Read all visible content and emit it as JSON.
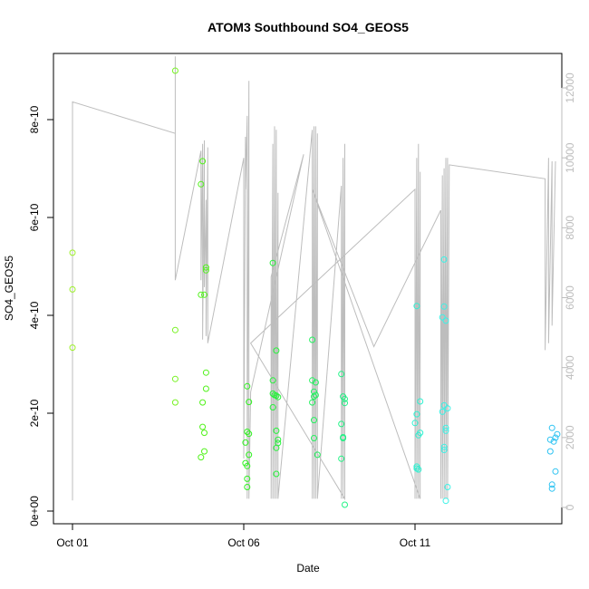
{
  "chart_data": {
    "type": "scatter",
    "title": "ATOM3 Southbound SO4_GEOS5",
    "xlabel": "Date",
    "ylabel": "SO4_GEOS5",
    "xlim": [
      0.0,
      14.5
    ],
    "ylim": [
      0.0,
      9.3e-10
    ],
    "y2lim": [
      0,
      12700
    ],
    "x_ticks": [
      {
        "value": 0,
        "label": "Oct 01"
      },
      {
        "value": 5,
        "label": "Oct 06"
      },
      {
        "value": 10,
        "label": "Oct 11"
      }
    ],
    "y_ticks": [
      {
        "value": 0,
        "label": "0e+00"
      },
      {
        "value": 2e-10,
        "label": "2e-10"
      },
      {
        "value": 4e-10,
        "label": "4e-10"
      },
      {
        "value": 6e-10,
        "label": "6e-10"
      },
      {
        "value": 8e-10,
        "label": "8e-10"
      }
    ],
    "y2_ticks": [
      {
        "value": 0,
        "label": "0"
      },
      {
        "value": 2000,
        "label": "2000"
      },
      {
        "value": 4000,
        "label": "4000"
      },
      {
        "value": 6000,
        "label": "6000"
      },
      {
        "value": 8000,
        "label": "8000"
      },
      {
        "value": 10000,
        "label": "10000"
      },
      {
        "value": 12000,
        "label": "12000"
      }
    ],
    "marker": "open-circle",
    "line_color": "#bdbdbd",
    "points": [
      {
        "x": 0.0,
        "y": 5.28e-10,
        "color": "#9ef22a"
      },
      {
        "x": 0.0,
        "y": 4.53e-10,
        "color": "#9ef22a"
      },
      {
        "x": 0.0,
        "y": 3.34e-10,
        "color": "#9ef22a"
      },
      {
        "x": 3.0,
        "y": 9e-10,
        "color": "#78f224"
      },
      {
        "x": 3.0,
        "y": 3.7e-10,
        "color": "#78f224"
      },
      {
        "x": 3.0,
        "y": 2.7e-10,
        "color": "#78f224"
      },
      {
        "x": 3.0,
        "y": 2.22e-10,
        "color": "#78f224"
      },
      {
        "x": 3.8,
        "y": 7.15e-10,
        "color": "#52f21c"
      },
      {
        "x": 3.75,
        "y": 6.68e-10,
        "color": "#52f21c"
      },
      {
        "x": 3.9,
        "y": 4.98e-10,
        "color": "#52f21c"
      },
      {
        "x": 3.9,
        "y": 4.92e-10,
        "color": "#52f21c"
      },
      {
        "x": 3.75,
        "y": 4.42e-10,
        "color": "#52f21c"
      },
      {
        "x": 3.85,
        "y": 4.42e-10,
        "color": "#52f21c"
      },
      {
        "x": 3.9,
        "y": 2.83e-10,
        "color": "#52f21c"
      },
      {
        "x": 3.9,
        "y": 2.5e-10,
        "color": "#52f21c"
      },
      {
        "x": 3.8,
        "y": 2.22e-10,
        "color": "#52f21c"
      },
      {
        "x": 3.8,
        "y": 1.72e-10,
        "color": "#52f21c"
      },
      {
        "x": 3.85,
        "y": 1.6e-10,
        "color": "#52f21c"
      },
      {
        "x": 3.85,
        "y": 1.22e-10,
        "color": "#52f21c"
      },
      {
        "x": 3.75,
        "y": 1.1e-10,
        "color": "#52f21c"
      },
      {
        "x": 5.1,
        "y": 2.55e-10,
        "color": "#2ef21f"
      },
      {
        "x": 5.15,
        "y": 2.23e-10,
        "color": "#2ef21f"
      },
      {
        "x": 5.1,
        "y": 1.62e-10,
        "color": "#2ef21f"
      },
      {
        "x": 5.15,
        "y": 1.58e-10,
        "color": "#2ef21f"
      },
      {
        "x": 5.05,
        "y": 1.4e-10,
        "color": "#2ef21f"
      },
      {
        "x": 5.15,
        "y": 1.15e-10,
        "color": "#2ef21f"
      },
      {
        "x": 5.05,
        "y": 9.8e-11,
        "color": "#2ef21f"
      },
      {
        "x": 5.1,
        "y": 9.2e-11,
        "color": "#2ef21f"
      },
      {
        "x": 5.1,
        "y": 6.6e-11,
        "color": "#2ef21f"
      },
      {
        "x": 5.1,
        "y": 4.9e-11,
        "color": "#2ef21f"
      },
      {
        "x": 5.85,
        "y": 5.07e-10,
        "color": "#26f23a"
      },
      {
        "x": 5.95,
        "y": 3.28e-10,
        "color": "#26f23a"
      },
      {
        "x": 5.85,
        "y": 2.67e-10,
        "color": "#26f23a"
      },
      {
        "x": 5.85,
        "y": 2.4e-10,
        "color": "#26f23a"
      },
      {
        "x": 5.9,
        "y": 2.37e-10,
        "color": "#26f23a"
      },
      {
        "x": 5.95,
        "y": 2.36e-10,
        "color": "#26f23a"
      },
      {
        "x": 6.0,
        "y": 2.33e-10,
        "color": "#26f23a"
      },
      {
        "x": 5.85,
        "y": 2.12e-10,
        "color": "#26f23a"
      },
      {
        "x": 5.95,
        "y": 1.64e-10,
        "color": "#26f23a"
      },
      {
        "x": 6.0,
        "y": 1.46e-10,
        "color": "#26f23a"
      },
      {
        "x": 6.0,
        "y": 1.39e-10,
        "color": "#26f23a"
      },
      {
        "x": 5.95,
        "y": 1.29e-10,
        "color": "#26f23a"
      },
      {
        "x": 5.95,
        "y": 7.6e-11,
        "color": "#26f23a"
      },
      {
        "x": 7.0,
        "y": 3.5e-10,
        "color": "#23f25f"
      },
      {
        "x": 7.0,
        "y": 2.67e-10,
        "color": "#23f25f"
      },
      {
        "x": 7.1,
        "y": 2.63e-10,
        "color": "#23f25f"
      },
      {
        "x": 7.05,
        "y": 2.44e-10,
        "color": "#23f25f"
      },
      {
        "x": 7.1,
        "y": 2.37e-10,
        "color": "#23f25f"
      },
      {
        "x": 7.05,
        "y": 2.34e-10,
        "color": "#23f25f"
      },
      {
        "x": 7.0,
        "y": 2.22e-10,
        "color": "#23f25f"
      },
      {
        "x": 7.05,
        "y": 1.86e-10,
        "color": "#23f25f"
      },
      {
        "x": 7.05,
        "y": 1.49e-10,
        "color": "#23f25f"
      },
      {
        "x": 7.15,
        "y": 1.15e-10,
        "color": "#23f25f"
      },
      {
        "x": 7.85,
        "y": 2.8e-10,
        "color": "#21f284"
      },
      {
        "x": 7.9,
        "y": 2.34e-10,
        "color": "#21f284"
      },
      {
        "x": 7.95,
        "y": 2.29e-10,
        "color": "#21f284"
      },
      {
        "x": 7.95,
        "y": 2.21e-10,
        "color": "#21f284"
      },
      {
        "x": 7.85,
        "y": 1.78e-10,
        "color": "#21f284"
      },
      {
        "x": 7.9,
        "y": 1.51e-10,
        "color": "#21f284"
      },
      {
        "x": 7.9,
        "y": 1.49e-10,
        "color": "#21f284"
      },
      {
        "x": 7.85,
        "y": 1.07e-10,
        "color": "#21f284"
      },
      {
        "x": 7.95,
        "y": 1.3e-11,
        "color": "#21f284"
      },
      {
        "x": 10.05,
        "y": 4.19e-10,
        "color": "#2ff2d2"
      },
      {
        "x": 10.15,
        "y": 2.24e-10,
        "color": "#2ff2d2"
      },
      {
        "x": 10.05,
        "y": 1.98e-10,
        "color": "#2ff2d2"
      },
      {
        "x": 10.0,
        "y": 1.8e-10,
        "color": "#2ff2d2"
      },
      {
        "x": 10.15,
        "y": 1.6e-10,
        "color": "#2ff2d2"
      },
      {
        "x": 10.1,
        "y": 1.55e-10,
        "color": "#2ff2d2"
      },
      {
        "x": 10.05,
        "y": 9.1e-11,
        "color": "#2ff2d2"
      },
      {
        "x": 10.05,
        "y": 8.7e-11,
        "color": "#2ff2d2"
      },
      {
        "x": 10.1,
        "y": 8.5e-11,
        "color": "#2ff2d2"
      },
      {
        "x": 10.85,
        "y": 5.14e-10,
        "color": "#3cf2e6"
      },
      {
        "x": 10.85,
        "y": 4.18e-10,
        "color": "#3cf2e6"
      },
      {
        "x": 10.8,
        "y": 3.96e-10,
        "color": "#3cf2e6"
      },
      {
        "x": 10.9,
        "y": 3.89e-10,
        "color": "#3cf2e6"
      },
      {
        "x": 10.85,
        "y": 2.16e-10,
        "color": "#3cf2e6"
      },
      {
        "x": 10.95,
        "y": 2.1e-10,
        "color": "#3cf2e6"
      },
      {
        "x": 10.8,
        "y": 2.03e-10,
        "color": "#3cf2e6"
      },
      {
        "x": 10.9,
        "y": 1.7e-10,
        "color": "#3cf2e6"
      },
      {
        "x": 10.9,
        "y": 1.64e-10,
        "color": "#3cf2e6"
      },
      {
        "x": 10.85,
        "y": 1.31e-10,
        "color": "#3cf2e6"
      },
      {
        "x": 10.85,
        "y": 1.25e-10,
        "color": "#3cf2e6"
      },
      {
        "x": 10.95,
        "y": 4.9e-11,
        "color": "#3cf2e6"
      },
      {
        "x": 10.9,
        "y": 2.1e-11,
        "color": "#3cf2e6"
      },
      {
        "x": 14.0,
        "y": 1.7e-10,
        "color": "#2dc3f2"
      },
      {
        "x": 14.15,
        "y": 1.57e-10,
        "color": "#2dc3f2"
      },
      {
        "x": 14.1,
        "y": 1.5e-10,
        "color": "#2dc3f2"
      },
      {
        "x": 13.95,
        "y": 1.46e-10,
        "color": "#2dc3f2"
      },
      {
        "x": 14.05,
        "y": 1.42e-10,
        "color": "#2dc3f2"
      },
      {
        "x": 13.95,
        "y": 1.22e-10,
        "color": "#2dc3f2"
      },
      {
        "x": 14.1,
        "y": 8.1e-11,
        "color": "#2dc3f2"
      },
      {
        "x": 14.0,
        "y": 5.4e-11,
        "color": "#2dc3f2"
      },
      {
        "x": 14.0,
        "y": 4.6e-11,
        "color": "#2dc3f2"
      }
    ],
    "altitude_series": {
      "axis": "right",
      "x": [
        0.0,
        0.0,
        3.0,
        3.0,
        3.0,
        3.0,
        3.75,
        3.75,
        3.8,
        3.8,
        3.85,
        3.85,
        3.9,
        3.9,
        3.95,
        3.95,
        5.0,
        5.0,
        5.05,
        5.05,
        5.1,
        5.1,
        5.15,
        5.15,
        5.2,
        6.75,
        5.8,
        5.8,
        5.85,
        5.85,
        5.9,
        5.9,
        5.95,
        5.95,
        6.0,
        6.0,
        7.0,
        7.0,
        7.05,
        7.05,
        7.1,
        7.1,
        7.15,
        7.15,
        7.85,
        7.85,
        7.9,
        7.9,
        7.95,
        7.95,
        5.2,
        10.0,
        10.0,
        10.05,
        10.05,
        10.1,
        10.1,
        10.15,
        10.15,
        7.0,
        8.8,
        10.75,
        10.75,
        10.8,
        10.8,
        10.85,
        10.85,
        10.9,
        10.9,
        10.95,
        10.95,
        11.0,
        13.8,
        13.8,
        13.9,
        13.9,
        14.0,
        14.0,
        14.1
      ],
      "y": [
        200,
        11600,
        10700,
        12900,
        6500,
        6500,
        10200,
        6500,
        10400,
        4800,
        10500,
        6300,
        8800,
        4900,
        10300,
        4700,
        10000,
        1400,
        10600,
        9100,
        11200,
        250,
        12200,
        250,
        3300,
        10100,
        6600,
        250,
        10400,
        250,
        10900,
        250,
        10800,
        250,
        9000,
        250,
        10800,
        250,
        10900,
        250,
        10900,
        250,
        10700,
        250,
        9200,
        250,
        10000,
        250,
        10400,
        250,
        4700,
        9100,
        250,
        10000,
        250,
        10400,
        250,
        9600,
        250,
        9100,
        4600,
        8500,
        250,
        9500,
        250,
        9700,
        250,
        10000,
        250,
        10000,
        250,
        9800,
        9400,
        4500,
        10000,
        4700,
        9900,
        5200,
        9900
      ]
    }
  }
}
